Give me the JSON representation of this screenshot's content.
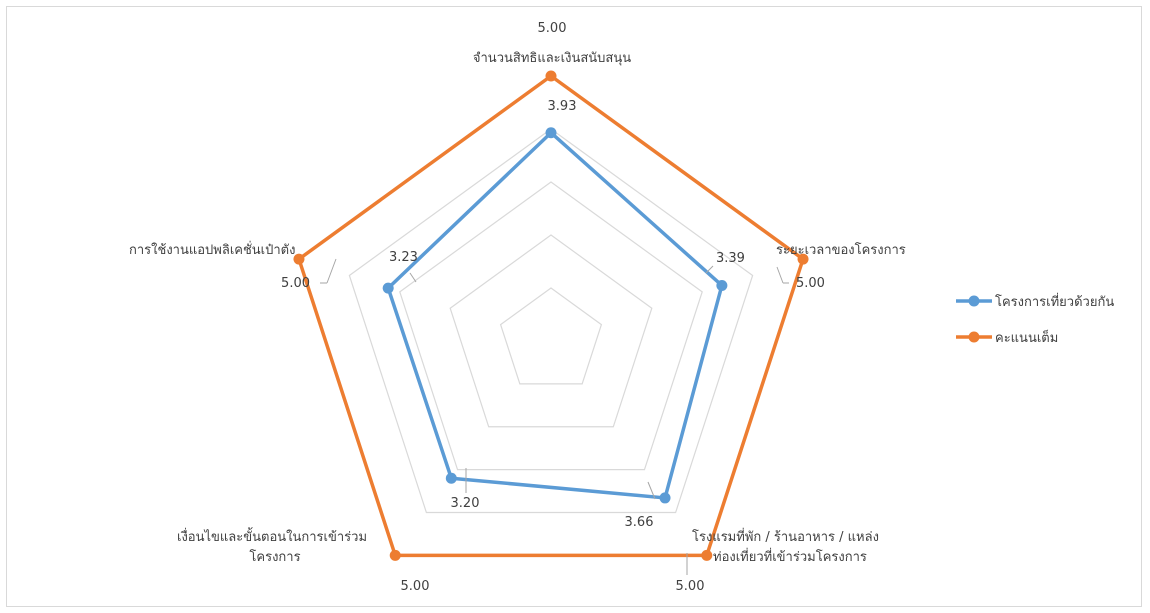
{
  "chart_data": {
    "type": "radar",
    "axes": [
      {
        "label": [
          "จำนวนสิทธิและเงินสนับสนุน"
        ]
      },
      {
        "label": [
          "ระยะเวลาของโครงการ"
        ]
      },
      {
        "label": [
          "โรงแรมที่พัก / ร้านอาหาร / แหล่ง",
          "ท่องเที่ยวที่เข้าร่วมโครงการ"
        ]
      },
      {
        "label": [
          "เงื่อนไขและขั้นตอนในการเข้าร่วม",
          "โครงการ"
        ]
      },
      {
        "label": [
          "การใช้งานแอปพลิเคชั่นเป๋าตัง"
        ]
      }
    ],
    "series": [
      {
        "name": "โครงการเที่ยวด้วยกัน",
        "color": "#5b9bd5",
        "values": [
          3.93,
          3.39,
          3.66,
          3.2,
          3.23
        ],
        "value_labels": [
          "3.93",
          "3.39",
          "3.66",
          "3.20",
          "3.23"
        ]
      },
      {
        "name": "คะแนนเต็ม",
        "color": "#ed7d31",
        "values": [
          5,
          5,
          5,
          5,
          5
        ],
        "value_labels": [
          "5.00",
          "5.00",
          "5.00",
          "5.00",
          "5.00"
        ]
      }
    ],
    "range": [
      0,
      5
    ],
    "grid": true,
    "gridline_color": "#d9d9d9",
    "legend_position": "right"
  }
}
